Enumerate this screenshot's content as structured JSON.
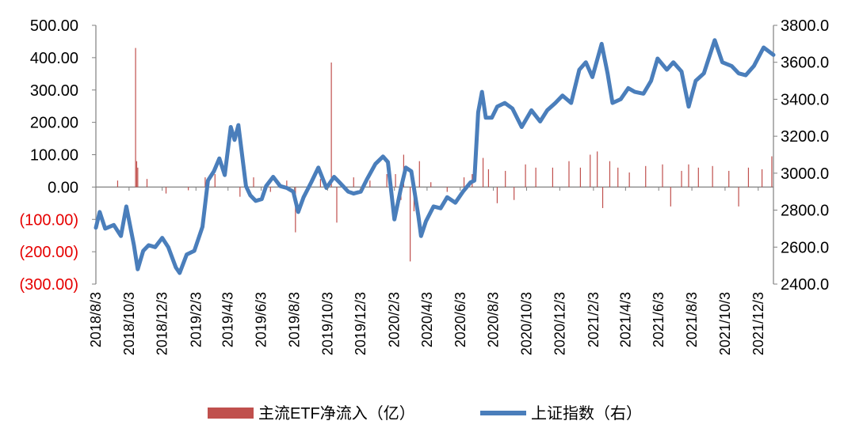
{
  "chart_data": {
    "type": "bar+line",
    "x_tick_labels": [
      "2018/8/3",
      "2018/10/3",
      "2018/12/3",
      "2019/2/3",
      "2019/4/3",
      "2019/6/3",
      "2019/8/3",
      "2019/10/3",
      "2019/12/3",
      "2020/2/3",
      "2020/4/3",
      "2020/6/3",
      "2020/8/3",
      "2020/10/3",
      "2020/12/3",
      "2021/2/3",
      "2021/4/3",
      "2021/6/3",
      "2021/8/3",
      "2021/10/3",
      "2021/12/3"
    ],
    "x_range": [
      "2018/8/3",
      "2021/12/31"
    ],
    "y_left": {
      "ticks": [
        500,
        400,
        300,
        200,
        100,
        0,
        -100,
        -200,
        -300
      ],
      "tick_labels": [
        "500.00",
        "400.00",
        "300.00",
        "200.00",
        "100.00",
        "0.00",
        "(100.00)",
        "(200.00)",
        "(300.00)"
      ],
      "range": [
        -300,
        500
      ]
    },
    "y_right": {
      "ticks": [
        3800,
        3600,
        3400,
        3200,
        3000,
        2800,
        2600,
        2400
      ],
      "tick_labels": [
        "3800.0",
        "3600.0",
        "3400.0",
        "3200.0",
        "3000.0",
        "2800.0",
        "2600.0",
        "2400.0"
      ],
      "range": [
        2400,
        3800
      ]
    },
    "series": [
      {
        "name": "主流ETF净流入（亿）",
        "type": "bar",
        "axis": "left",
        "color": "#c0504d",
        "points": [
          [
            "2018/10/15",
            430
          ],
          [
            "2018/10/17",
            80
          ],
          [
            "2018/10/19",
            60
          ],
          [
            "2018/9/12",
            20
          ],
          [
            "2018/11/5",
            25
          ],
          [
            "2018/12/10",
            -20
          ],
          [
            "2019/1/20",
            -10
          ],
          [
            "2019/2/20",
            30
          ],
          [
            "2019/3/10",
            40
          ],
          [
            "2019/4/25",
            -30
          ],
          [
            "2019/5/20",
            30
          ],
          [
            "2019/6/20",
            -15
          ],
          [
            "2019/7/20",
            20
          ],
          [
            "2019/8/5",
            -140
          ],
          [
            "2019/9/20",
            25
          ],
          [
            "2019/10/10",
            385
          ],
          [
            "2019/10/20",
            -110
          ],
          [
            "2019/11/20",
            30
          ],
          [
            "2019/12/20",
            20
          ],
          [
            "2020/1/20",
            40
          ],
          [
            "2020/2/5",
            40
          ],
          [
            "2020/2/15",
            -40
          ],
          [
            "2020/2/20",
            100
          ],
          [
            "2020/3/3",
            -230
          ],
          [
            "2020/3/10",
            -75
          ],
          [
            "2020/3/20",
            80
          ],
          [
            "2020/4/10",
            15
          ],
          [
            "2020/5/10",
            -15
          ],
          [
            "2020/6/10",
            30
          ],
          [
            "2020/6/25",
            40
          ],
          [
            "2020/7/15",
            90
          ],
          [
            "2020/7/25",
            55
          ],
          [
            "2020/8/10",
            -50
          ],
          [
            "2020/8/25",
            50
          ],
          [
            "2020/9/10",
            -40
          ],
          [
            "2020/10/1",
            70
          ],
          [
            "2020/10/20",
            60
          ],
          [
            "2020/11/20",
            60
          ],
          [
            "2020/12/20",
            80
          ],
          [
            "2021/1/10",
            60
          ],
          [
            "2021/1/28",
            100
          ],
          [
            "2021/2/10",
            110
          ],
          [
            "2021/2/20",
            -65
          ],
          [
            "2021/3/5",
            80
          ],
          [
            "2021/3/20",
            60
          ],
          [
            "2021/4/10",
            45
          ],
          [
            "2021/5/10",
            65
          ],
          [
            "2021/6/10",
            70
          ],
          [
            "2021/6/25",
            -60
          ],
          [
            "2021/7/15",
            50
          ],
          [
            "2021/7/28",
            70
          ],
          [
            "2021/8/15",
            60
          ],
          [
            "2021/9/10",
            65
          ],
          [
            "2021/10/10",
            50
          ],
          [
            "2021/10/28",
            -60
          ],
          [
            "2021/11/15",
            60
          ],
          [
            "2021/12/10",
            55
          ],
          [
            "2021/12/28",
            95
          ]
        ]
      },
      {
        "name": "上证指数（右）",
        "type": "line",
        "axis": "right",
        "color": "#4a7ebb",
        "points": [
          [
            "2018/8/3",
            2705
          ],
          [
            "2018/8/10",
            2790
          ],
          [
            "2018/8/20",
            2700
          ],
          [
            "2018/9/5",
            2720
          ],
          [
            "2018/9/18",
            2660
          ],
          [
            "2018/9/28",
            2820
          ],
          [
            "2018/10/12",
            2610
          ],
          [
            "2018/10/19",
            2480
          ],
          [
            "2018/10/29",
            2580
          ],
          [
            "2018/11/8",
            2610
          ],
          [
            "2018/11/20",
            2600
          ],
          [
            "2018/12/3",
            2650
          ],
          [
            "2018/12/14",
            2600
          ],
          [
            "2018/12/28",
            2490
          ],
          [
            "2019/1/4",
            2460
          ],
          [
            "2019/1/17",
            2560
          ],
          [
            "2019/1/31",
            2580
          ],
          [
            "2019/2/15",
            2710
          ],
          [
            "2019/2/25",
            2960
          ],
          [
            "2019/3/8",
            3010
          ],
          [
            "2019/3/18",
            3080
          ],
          [
            "2019/3/28",
            2990
          ],
          [
            "2019/4/8",
            3250
          ],
          [
            "2019/4/15",
            3180
          ],
          [
            "2019/4/22",
            3260
          ],
          [
            "2019/5/6",
            2930
          ],
          [
            "2019/5/14",
            2880
          ],
          [
            "2019/5/24",
            2850
          ],
          [
            "2019/6/4",
            2860
          ],
          [
            "2019/6/12",
            2930
          ],
          [
            "2019/6/25",
            2980
          ],
          [
            "2019/7/8",
            2930
          ],
          [
            "2019/7/20",
            2920
          ],
          [
            "2019/8/1",
            2900
          ],
          [
            "2019/8/10",
            2790
          ],
          [
            "2019/8/20",
            2870
          ],
          [
            "2019/9/3",
            2950
          ],
          [
            "2019/9/16",
            3030
          ],
          [
            "2019/10/1",
            2920
          ],
          [
            "2019/10/15",
            2980
          ],
          [
            "2019/10/25",
            2950
          ],
          [
            "2019/11/10",
            2900
          ],
          [
            "2019/11/20",
            2890
          ],
          [
            "2019/12/3",
            2900
          ],
          [
            "2019/12/15",
            2970
          ],
          [
            "2019/12/30",
            3050
          ],
          [
            "2020/1/13",
            3090
          ],
          [
            "2020/1/22",
            3060
          ],
          [
            "2020/2/3",
            2750
          ],
          [
            "2020/2/15",
            2920
          ],
          [
            "2020/2/24",
            3030
          ],
          [
            "2020/3/5",
            3010
          ],
          [
            "2020/3/18",
            2770
          ],
          [
            "2020/3/23",
            2660
          ],
          [
            "2020/4/1",
            2740
          ],
          [
            "2020/4/15",
            2820
          ],
          [
            "2020/4/28",
            2810
          ],
          [
            "2020/5/10",
            2870
          ],
          [
            "2020/5/25",
            2840
          ],
          [
            "2020/6/8",
            2900
          ],
          [
            "2020/6/22",
            2950
          ],
          [
            "2020/6/29",
            2960
          ],
          [
            "2020/7/6",
            3330
          ],
          [
            "2020/7/13",
            3440
          ],
          [
            "2020/7/20",
            3300
          ],
          [
            "2020/7/31",
            3300
          ],
          [
            "2020/8/10",
            3360
          ],
          [
            "2020/8/24",
            3380
          ],
          [
            "2020/9/7",
            3350
          ],
          [
            "2020/9/24",
            3250
          ],
          [
            "2020/10/12",
            3340
          ],
          [
            "2020/10/28",
            3280
          ],
          [
            "2020/11/10",
            3340
          ],
          [
            "2020/11/25",
            3380
          ],
          [
            "2020/12/8",
            3420
          ],
          [
            "2020/12/24",
            3380
          ],
          [
            "2021/1/8",
            3560
          ],
          [
            "2021/1/20",
            3600
          ],
          [
            "2021/2/1",
            3520
          ],
          [
            "2021/2/18",
            3700
          ],
          [
            "2021/3/1",
            3540
          ],
          [
            "2021/3/10",
            3380
          ],
          [
            "2021/3/25",
            3400
          ],
          [
            "2021/4/8",
            3460
          ],
          [
            "2021/4/20",
            3440
          ],
          [
            "2021/5/6",
            3430
          ],
          [
            "2021/5/20",
            3500
          ],
          [
            "2021/6/1",
            3620
          ],
          [
            "2021/6/18",
            3560
          ],
          [
            "2021/6/30",
            3600
          ],
          [
            "2021/7/15",
            3550
          ],
          [
            "2021/7/28",
            3360
          ],
          [
            "2021/8/10",
            3500
          ],
          [
            "2021/8/25",
            3540
          ],
          [
            "2021/9/14",
            3720
          ],
          [
            "2021/9/28",
            3600
          ],
          [
            "2021/10/15",
            3580
          ],
          [
            "2021/10/28",
            3540
          ],
          [
            "2021/11/10",
            3530
          ],
          [
            "2021/11/25",
            3580
          ],
          [
            "2021/12/13",
            3680
          ],
          [
            "2021/12/31",
            3640
          ]
        ]
      }
    ],
    "legend": {
      "position": "bottom",
      "bar_label": "主流ETF净流入（亿）",
      "line_label": "上证指数（右）"
    },
    "grid": false
  }
}
